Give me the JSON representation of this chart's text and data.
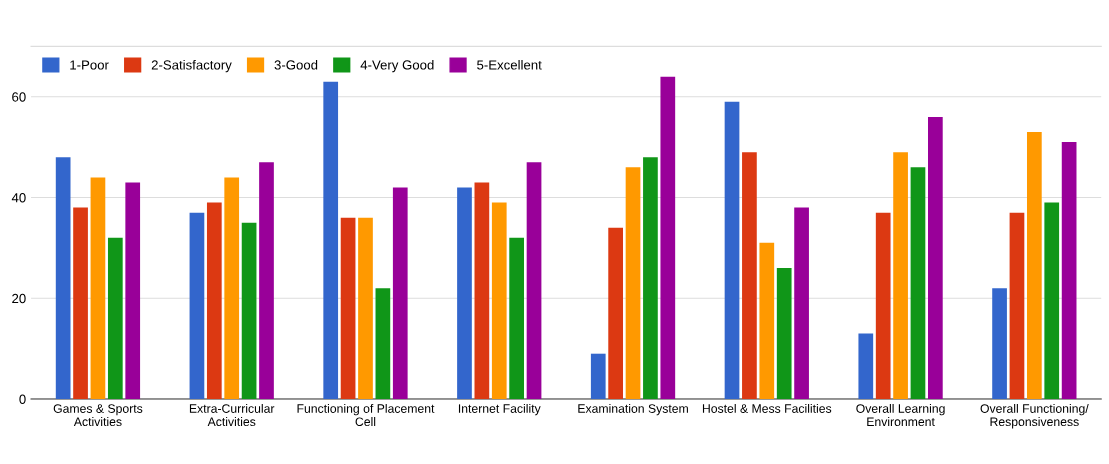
{
  "chart_data": {
    "type": "bar",
    "categories": [
      "Games & Sports Activities",
      "Extra-Curricular Activities",
      "Functioning of Placement Cell",
      "Internet Facility",
      "Examination System",
      "Hostel & Mess Facilities",
      "Overall Learning Environment",
      "Overall Functioning/ Responsiveness"
    ],
    "series": [
      {
        "name": "1-Poor",
        "color": "#3366cc",
        "values": [
          48,
          37,
          63,
          42,
          9,
          59,
          13,
          22
        ]
      },
      {
        "name": "2-Satisfactory",
        "color": "#dc3912",
        "values": [
          38,
          39,
          36,
          43,
          34,
          49,
          37,
          37
        ]
      },
      {
        "name": "3-Good",
        "color": "#ff9900",
        "values": [
          44,
          44,
          36,
          39,
          46,
          31,
          49,
          53
        ]
      },
      {
        "name": "4-Very Good",
        "color": "#109618",
        "values": [
          32,
          35,
          22,
          32,
          48,
          26,
          46,
          39
        ]
      },
      {
        "name": "5-Excellent",
        "color": "#990099",
        "values": [
          43,
          47,
          42,
          47,
          64,
          38,
          56,
          51
        ]
      }
    ],
    "ylim": [
      0,
      70
    ],
    "yticks": [
      0,
      20,
      40,
      60
    ],
    "grid": "y",
    "legend": "top left"
  }
}
